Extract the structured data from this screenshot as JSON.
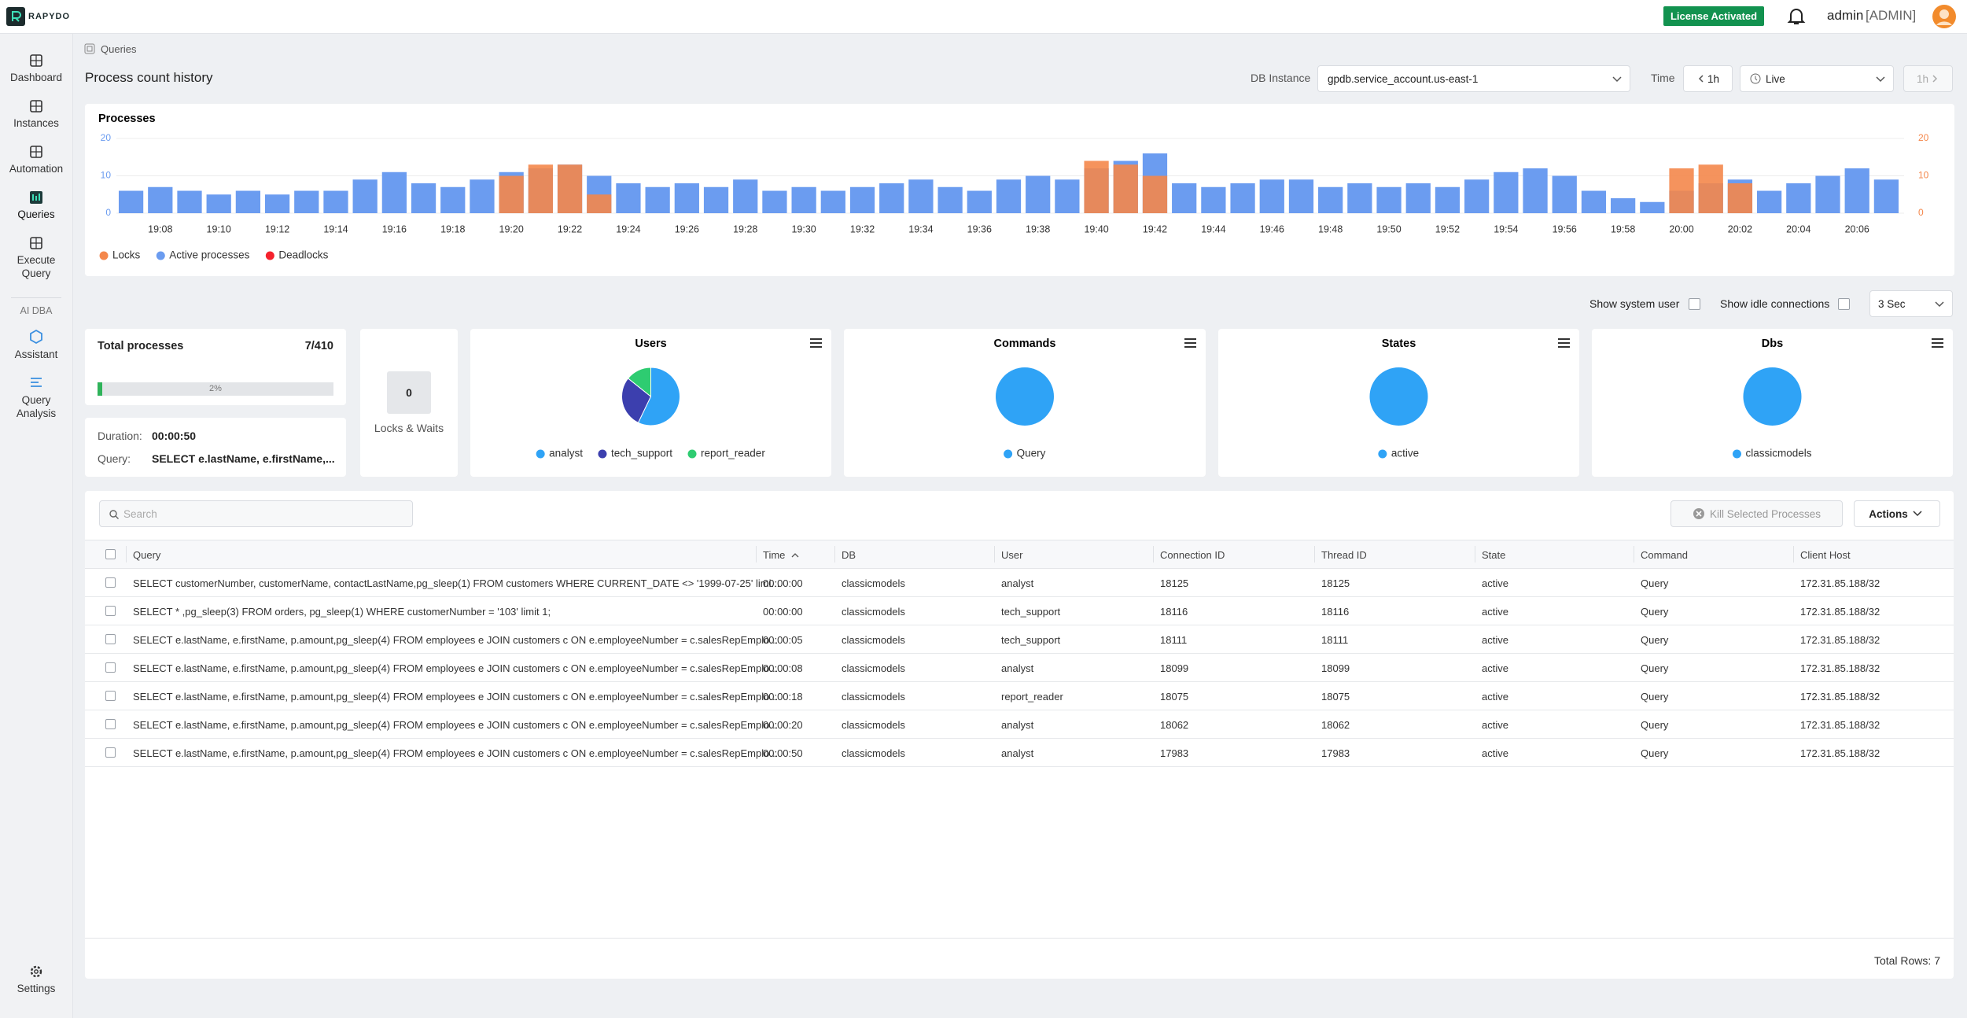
{
  "header": {
    "logo": "RAPYDO",
    "license": "License Activated",
    "user": "admin",
    "role": "[ADMIN]"
  },
  "sidebar": {
    "items": [
      "Dashboard",
      "Instances",
      "Automation",
      "Queries",
      "Execute Query"
    ],
    "section": "AI DBA",
    "ai_items": [
      "Assistant",
      "Query Analysis"
    ],
    "settings": "Settings"
  },
  "breadcrumb": "Queries",
  "page_title": "Process count history",
  "toolbar": {
    "db_label": "DB Instance",
    "db_value": "gpdb.service_account.us-east-1",
    "time_label": "Time",
    "range": "1h",
    "mode": "Live",
    "next_range": "1h"
  },
  "filters": {
    "system_user": "Show system user",
    "idle": "Show idle connections",
    "refresh": "3 Sec"
  },
  "summary": {
    "title": "Total processes",
    "count": "7/410",
    "progress_value": 2,
    "progress_label": "2%",
    "duration_label": "Duration:",
    "duration": "00:00:50",
    "query_label": "Query:",
    "query": "SELECT e.lastName, e.firstName,...",
    "locks": "0",
    "locks_label": "Locks & Waits"
  },
  "chart_data": [
    {
      "type": "bar",
      "title": "Processes",
      "categories": [
        null,
        "19:08",
        null,
        "19:10",
        null,
        "19:12",
        null,
        "19:14",
        null,
        "19:16",
        null,
        "19:18",
        null,
        "19:20",
        null,
        "19:22",
        null,
        "19:24",
        null,
        "19:26",
        null,
        "19:28",
        null,
        "19:30",
        null,
        "19:32",
        null,
        "19:34",
        null,
        "19:36",
        null,
        "19:38",
        null,
        "19:40",
        null,
        "19:42",
        null,
        "19:44",
        null,
        "19:46",
        null,
        "19:48",
        null,
        "19:50",
        null,
        "19:52",
        null,
        "19:54",
        null,
        "19:56",
        null,
        "19:58",
        null,
        "20:00",
        null,
        "20:02",
        null,
        "20:04",
        null,
        "20:06",
        null
      ],
      "series": [
        {
          "name": "Locks",
          "color": "#f4874b",
          "axis": "y2",
          "values": [
            0,
            0,
            0,
            0,
            0,
            0,
            0,
            0,
            0,
            0,
            0,
            0,
            0,
            10,
            13,
            13,
            5,
            0,
            0,
            0,
            0,
            0,
            0,
            0,
            0,
            0,
            0,
            0,
            0,
            0,
            0,
            0,
            0,
            14,
            13,
            10,
            0,
            0,
            0,
            0,
            0,
            0,
            0,
            0,
            0,
            0,
            0,
            0,
            0,
            0,
            0,
            0,
            0,
            12,
            13,
            8,
            0,
            0,
            0,
            0,
            0
          ]
        },
        {
          "name": "Active processes",
          "color": "#6b9cf0",
          "values": [
            6,
            7,
            6,
            5,
            6,
            5,
            6,
            6,
            9,
            11,
            8,
            7,
            9,
            11,
            12,
            13,
            10,
            8,
            7,
            8,
            7,
            9,
            6,
            7,
            6,
            7,
            8,
            9,
            7,
            6,
            9,
            10,
            9,
            12,
            14,
            16,
            8,
            7,
            8,
            9,
            9,
            7,
            8,
            7,
            8,
            7,
            9,
            11,
            12,
            10,
            6,
            4,
            3,
            6,
            8,
            9,
            6,
            8,
            10,
            12,
            9
          ]
        },
        {
          "name": "Deadlocks",
          "color": "#f5222d",
          "values": [
            0,
            0,
            0,
            0,
            0,
            0,
            0,
            0,
            0,
            0,
            0,
            0,
            0,
            0,
            0,
            0,
            0,
            0,
            0,
            0,
            0,
            0,
            0,
            0,
            0,
            0,
            0,
            0,
            0,
            0,
            0,
            0,
            0,
            0,
            0,
            0,
            0,
            0,
            0,
            0,
            0,
            0,
            0,
            0,
            0,
            0,
            0,
            0,
            0,
            0,
            0,
            0,
            0,
            0,
            0,
            0,
            0,
            0,
            0,
            0,
            0
          ]
        }
      ],
      "ylim": [
        0,
        20
      ],
      "yticks": [
        0,
        10,
        20
      ],
      "y2lim": [
        0,
        20
      ],
      "y2ticks": [
        0,
        10,
        20
      ],
      "grid": true
    },
    {
      "type": "pie",
      "title": "Users",
      "categories": [
        "analyst",
        "tech_support",
        "report_reader"
      ],
      "values": [
        4,
        2,
        1
      ],
      "colors": [
        "#2fa3f6",
        "#3c3fae",
        "#2ecc71"
      ]
    },
    {
      "type": "pie",
      "title": "Commands",
      "categories": [
        "Query"
      ],
      "values": [
        7
      ],
      "colors": [
        "#2fa3f6"
      ]
    },
    {
      "type": "pie",
      "title": "States",
      "categories": [
        "active"
      ],
      "values": [
        7
      ],
      "colors": [
        "#2fa3f6"
      ]
    },
    {
      "type": "pie",
      "title": "Dbs",
      "categories": [
        "classicmodels"
      ],
      "values": [
        7
      ],
      "colors": [
        "#2fa3f6"
      ]
    }
  ],
  "table": {
    "search": "Search",
    "kill": "Kill Selected Processes",
    "actions": "Actions",
    "columns": [
      "Query",
      "Time",
      "DB",
      "User",
      "Connection ID",
      "Thread ID",
      "State",
      "Command",
      "Client Host"
    ],
    "rows": [
      [
        "SELECT customerNumber, customerName, contactLastName,pg_sleep(1) FROM customers WHERE CURRENT_DATE <> '1999-07-25' limi...",
        "00:00:00",
        "classicmodels",
        "analyst",
        "18125",
        "18125",
        "active",
        "Query",
        "172.31.85.188/32"
      ],
      [
        "SELECT * ,pg_sleep(3) FROM orders, pg_sleep(1) WHERE customerNumber = '103' limit 1;",
        "00:00:00",
        "classicmodels",
        "tech_support",
        "18116",
        "18116",
        "active",
        "Query",
        "172.31.85.188/32"
      ],
      [
        "SELECT e.lastName, e.firstName, p.amount,pg_sleep(4) FROM employees e JOIN customers c ON e.employeeNumber = c.salesRepEmplo...",
        "00:00:05",
        "classicmodels",
        "tech_support",
        "18111",
        "18111",
        "active",
        "Query",
        "172.31.85.188/32"
      ],
      [
        "SELECT e.lastName, e.firstName, p.amount,pg_sleep(4) FROM employees e JOIN customers c ON e.employeeNumber = c.salesRepEmplo...",
        "00:00:08",
        "classicmodels",
        "analyst",
        "18099",
        "18099",
        "active",
        "Query",
        "172.31.85.188/32"
      ],
      [
        "SELECT e.lastName, e.firstName, p.amount,pg_sleep(4) FROM employees e JOIN customers c ON e.employeeNumber = c.salesRepEmplo...",
        "00:00:18",
        "classicmodels",
        "report_reader",
        "18075",
        "18075",
        "active",
        "Query",
        "172.31.85.188/32"
      ],
      [
        "SELECT e.lastName, e.firstName, p.amount,pg_sleep(4) FROM employees e JOIN customers c ON e.employeeNumber = c.salesRepEmplo...",
        "00:00:20",
        "classicmodels",
        "analyst",
        "18062",
        "18062",
        "active",
        "Query",
        "172.31.85.188/32"
      ],
      [
        "SELECT e.lastName, e.firstName, p.amount,pg_sleep(4) FROM employees e JOIN customers c ON e.employeeNumber = c.salesRepEmplo...",
        "00:00:50",
        "classicmodels",
        "analyst",
        "17983",
        "17983",
        "active",
        "Query",
        "172.31.85.188/32"
      ]
    ],
    "footer": "Total Rows: 7"
  }
}
